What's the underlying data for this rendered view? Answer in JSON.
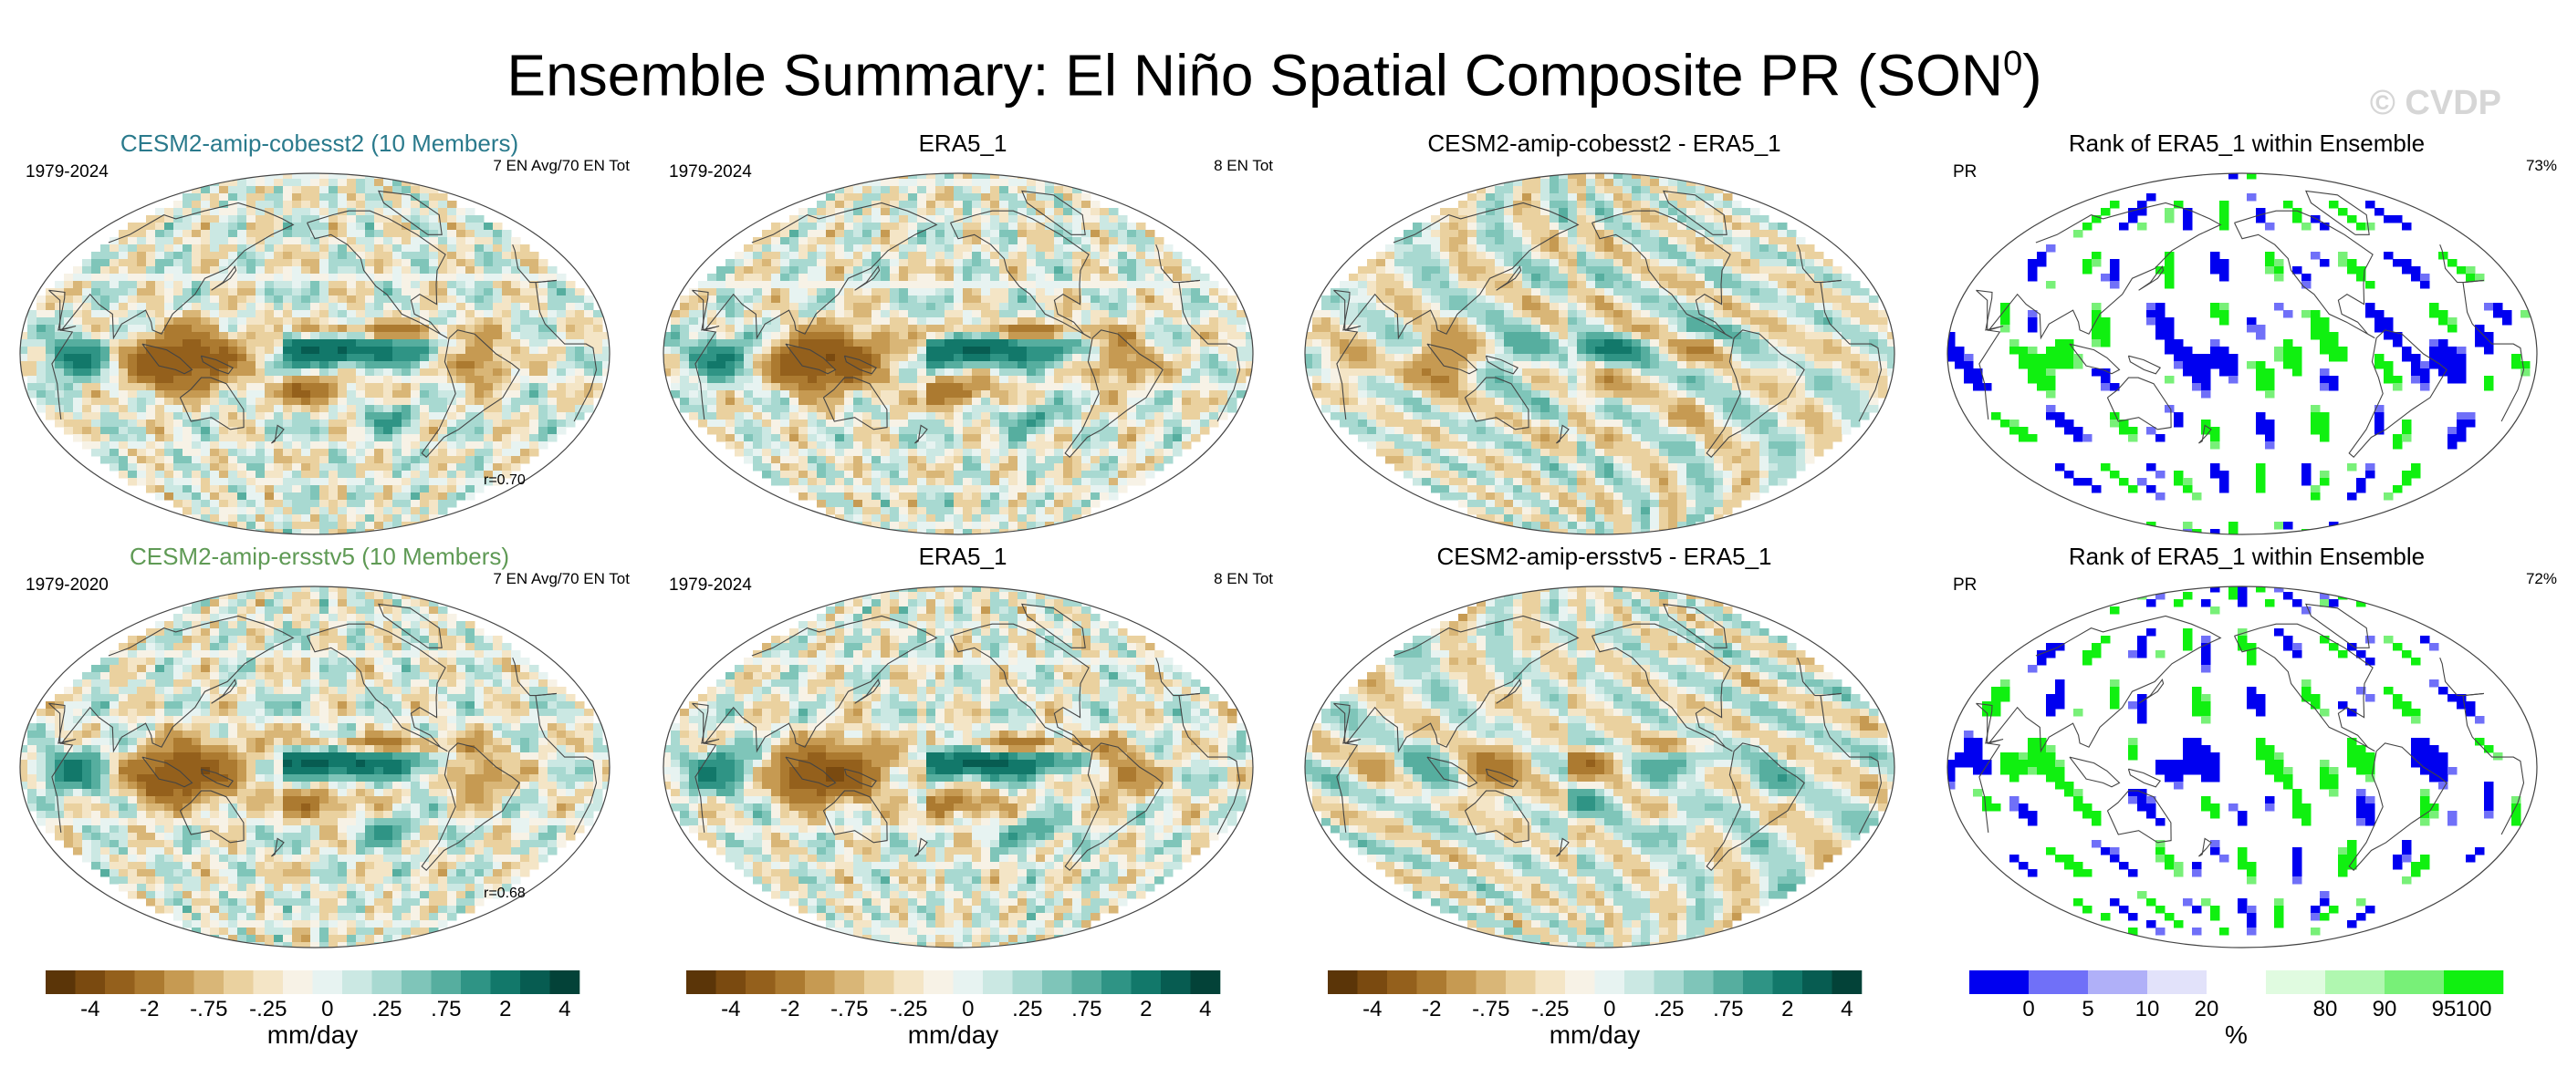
{
  "title_main": "Ensemble Summary: El Niño Spatial Composite PR (SON",
  "title_sup": "0",
  "title_end": ")",
  "watermark": "© CVDP",
  "colors": {
    "cesm_cobe": "#2a7a8c",
    "cesm_ersst": "#5f9a55",
    "brown_dark": "#6a3d0c",
    "teal_dark": "#0b4a40",
    "rank_low": "#0000f0",
    "rank_high": "#10f010"
  },
  "panels": [
    {
      "title": "CESM2-amip-cobesst2 (10 Members)",
      "title_color": "#2a7a8c",
      "left_text": "1979-2024",
      "right_text": "7 EN Avg/70 EN Tot",
      "corr": "r=0.70",
      "kind": "diverging",
      "seed": 1
    },
    {
      "title": "ERA5_1",
      "title_color": "#000000",
      "left_text": "1979-2024",
      "right_text": "8 EN Tot",
      "corr": "",
      "kind": "diverging",
      "seed": 2
    },
    {
      "title": "CESM2-amip-cobesst2 - ERA5_1",
      "title_color": "#000000",
      "left_text": "",
      "right_text": "",
      "corr": "",
      "kind": "diverging",
      "seed": 3
    },
    {
      "title": "Rank of ERA5_1 within Ensemble",
      "title_color": "#000000",
      "left_text": "PR",
      "right_text": "73%",
      "corr": "",
      "kind": "rank",
      "seed": 4
    },
    {
      "title": "CESM2-amip-ersstv5 (10 Members)",
      "title_color": "#5f9a55",
      "left_text": "1979-2020",
      "right_text": "7 EN Avg/70 EN Tot",
      "corr": "r=0.68",
      "kind": "diverging",
      "seed": 5
    },
    {
      "title": "ERA5_1",
      "title_color": "#000000",
      "left_text": "1979-2024",
      "right_text": "8 EN Tot",
      "corr": "",
      "kind": "diverging",
      "seed": 6
    },
    {
      "title": "CESM2-amip-ersstv5 - ERA5_1",
      "title_color": "#000000",
      "left_text": "",
      "right_text": "",
      "corr": "",
      "kind": "diverging",
      "seed": 7
    },
    {
      "title": "Rank of ERA5_1 within Ensemble",
      "title_color": "#000000",
      "left_text": "PR",
      "right_text": "72%",
      "corr": "",
      "kind": "rank",
      "seed": 8
    }
  ],
  "colorbars": [
    {
      "kind": "diverging",
      "colors": [
        "#5b3508",
        "#7a4a10",
        "#94601c",
        "#ac7a30",
        "#c69a52",
        "#d9b677",
        "#ead19f",
        "#f4e5c6",
        "#f7f2e6",
        "#e7f3f1",
        "#cbe8e3",
        "#a8d9d1",
        "#7fc5b9",
        "#56ae9f",
        "#2f9485",
        "#12786a",
        "#075c51",
        "#034238"
      ],
      "labels": [
        "-4",
        "-2",
        "-.75",
        "-.25",
        "0",
        ".25",
        ".75",
        "2",
        "4"
      ],
      "units": "mm/day"
    },
    {
      "kind": "diverging",
      "colors": [
        "#5b3508",
        "#7a4a10",
        "#94601c",
        "#ac7a30",
        "#c69a52",
        "#d9b677",
        "#ead19f",
        "#f4e5c6",
        "#f7f2e6",
        "#e7f3f1",
        "#cbe8e3",
        "#a8d9d1",
        "#7fc5b9",
        "#56ae9f",
        "#2f9485",
        "#12786a",
        "#075c51",
        "#034238"
      ],
      "labels": [
        "-4",
        "-2",
        "-.75",
        "-.25",
        "0",
        ".25",
        ".75",
        "2",
        "4"
      ],
      "units": "mm/day"
    },
    {
      "kind": "diverging",
      "colors": [
        "#5b3508",
        "#7a4a10",
        "#94601c",
        "#ac7a30",
        "#c69a52",
        "#d9b677",
        "#ead19f",
        "#f4e5c6",
        "#f7f2e6",
        "#e7f3f1",
        "#cbe8e3",
        "#a8d9d1",
        "#7fc5b9",
        "#56ae9f",
        "#2f9485",
        "#12786a",
        "#075c51",
        "#034238"
      ],
      "labels": [
        "-4",
        "-2",
        "-.75",
        "-.25",
        "0",
        ".25",
        ".75",
        "2",
        "4"
      ],
      "units": "mm/day"
    },
    {
      "kind": "rank",
      "colors": [
        "#0000f0",
        "#7070f8",
        "#b0b0f8",
        "#e2e2fa",
        "#ffffff",
        "#e0fbe0",
        "#b0f7b0",
        "#78f078",
        "#10f010"
      ],
      "labels": [
        "0",
        "5",
        "10",
        "20",
        "80",
        "90",
        "95",
        "100"
      ],
      "units": "%"
    }
  ],
  "chart_data": {
    "type": "heatmap",
    "title": "Ensemble Summary: El Niño Spatial Composite PR (SON0)",
    "variable": "PR",
    "season": "SON",
    "units_diverging": "mm/day",
    "units_rank": "%",
    "diverging_levels": [
      "-4",
      "-2",
      "-.75",
      "-.25",
      "0",
      ".25",
      ".75",
      "2",
      "4"
    ],
    "rank_levels": [
      "0",
      "5",
      "10",
      "20",
      "80",
      "90",
      "95",
      "100"
    ],
    "rows": [
      {
        "model": "CESM2-amip-cobesst2",
        "members": 10,
        "model_period": "1979-2024",
        "model_events": "7 EN Avg/70 EN Tot",
        "pattern_correlation": 0.7,
        "obs": "ERA5_1",
        "obs_period": "1979-2024",
        "obs_events": "8 EN Tot",
        "rank_pct": 73
      },
      {
        "model": "CESM2-amip-ersstv5",
        "members": 10,
        "model_period": "1979-2020",
        "model_events": "7 EN Avg/70 EN Tot",
        "pattern_correlation": 0.68,
        "obs": "ERA5_1",
        "obs_period": "1979-2024",
        "obs_events": "8 EN Tot",
        "rank_pct": 72
      }
    ]
  }
}
